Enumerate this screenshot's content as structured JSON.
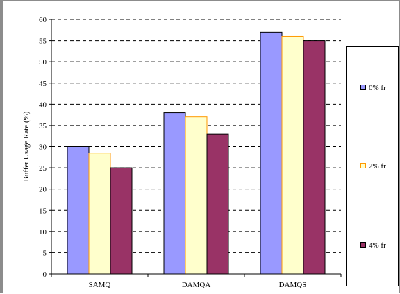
{
  "chart_data": {
    "type": "bar",
    "title": "",
    "xlabel": "",
    "ylabel": "Buffer Usage Rate (%)",
    "categories": [
      "SAMQ",
      "DAMQA",
      "DAMQS"
    ],
    "series": [
      {
        "name": "0% fr",
        "values": [
          30,
          38,
          57
        ],
        "color": "#9999ff",
        "swatch_border": "#000000"
      },
      {
        "name": "2% fr",
        "values": [
          28.5,
          37,
          56
        ],
        "color": "#ffffcc",
        "swatch_border": "#ff9900"
      },
      {
        "name": "4% fr",
        "values": [
          25,
          33,
          55
        ],
        "color": "#993366",
        "swatch_border": "#000000"
      }
    ],
    "ylim": [
      0,
      60
    ],
    "ytick_step": 5,
    "ytick_labels": [
      "0",
      "5",
      "10",
      "15",
      "20",
      "25",
      "30",
      "35",
      "40",
      "45",
      "50",
      "55",
      "60"
    ],
    "grid": true,
    "legend": "right"
  }
}
